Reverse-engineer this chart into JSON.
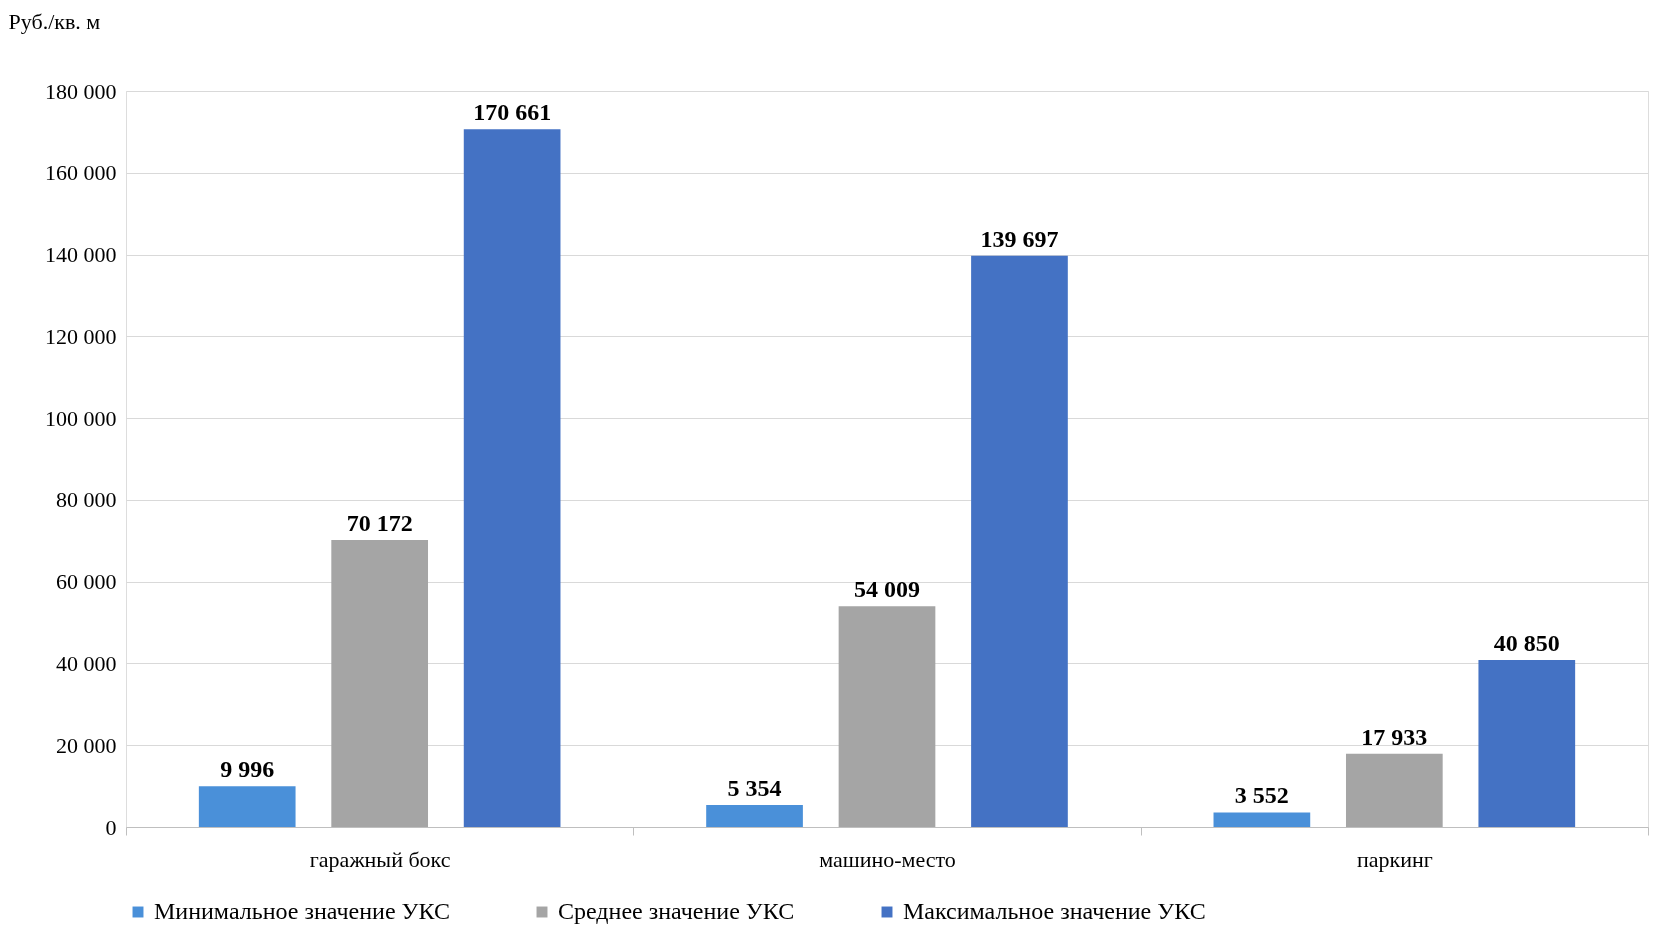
{
  "chart_data": {
    "type": "bar",
    "ylabel": "Руб./кв. м",
    "categories": [
      "гаражный бокс",
      "машино-место",
      "паркинг"
    ],
    "series": [
      {
        "name": "Минимальное значение УКС",
        "color": "#4a90d9",
        "values": [
          9996,
          5354,
          3552
        ],
        "value_labels": [
          "9 996",
          "5 354",
          "3 552"
        ]
      },
      {
        "name": "Среднее значение УКС",
        "color": "#a5a5a5",
        "values": [
          70172,
          54009,
          17933
        ],
        "value_labels": [
          "70 172",
          "54 009",
          "17 933"
        ]
      },
      {
        "name": "Максимальное значение УКС",
        "color": "#4472c4",
        "values": [
          170661,
          139697,
          40850
        ],
        "value_labels": [
          "170 661",
          "139 697",
          "40 850"
        ]
      }
    ],
    "ylim": [
      0,
      180000
    ],
    "yticks": [
      {
        "value": 0,
        "label": "0"
      },
      {
        "value": 20000,
        "label": "20 000"
      },
      {
        "value": 40000,
        "label": "40 000"
      },
      {
        "value": 60000,
        "label": "60 000"
      },
      {
        "value": 80000,
        "label": "80 000"
      },
      {
        "value": 100000,
        "label": "100 000"
      },
      {
        "value": 120000,
        "label": "120 000"
      },
      {
        "value": 140000,
        "label": "140 000"
      },
      {
        "value": 160000,
        "label": "160 000"
      },
      {
        "value": 180000,
        "label": "180 000"
      }
    ],
    "grid": "y",
    "legend": "bottom"
  }
}
